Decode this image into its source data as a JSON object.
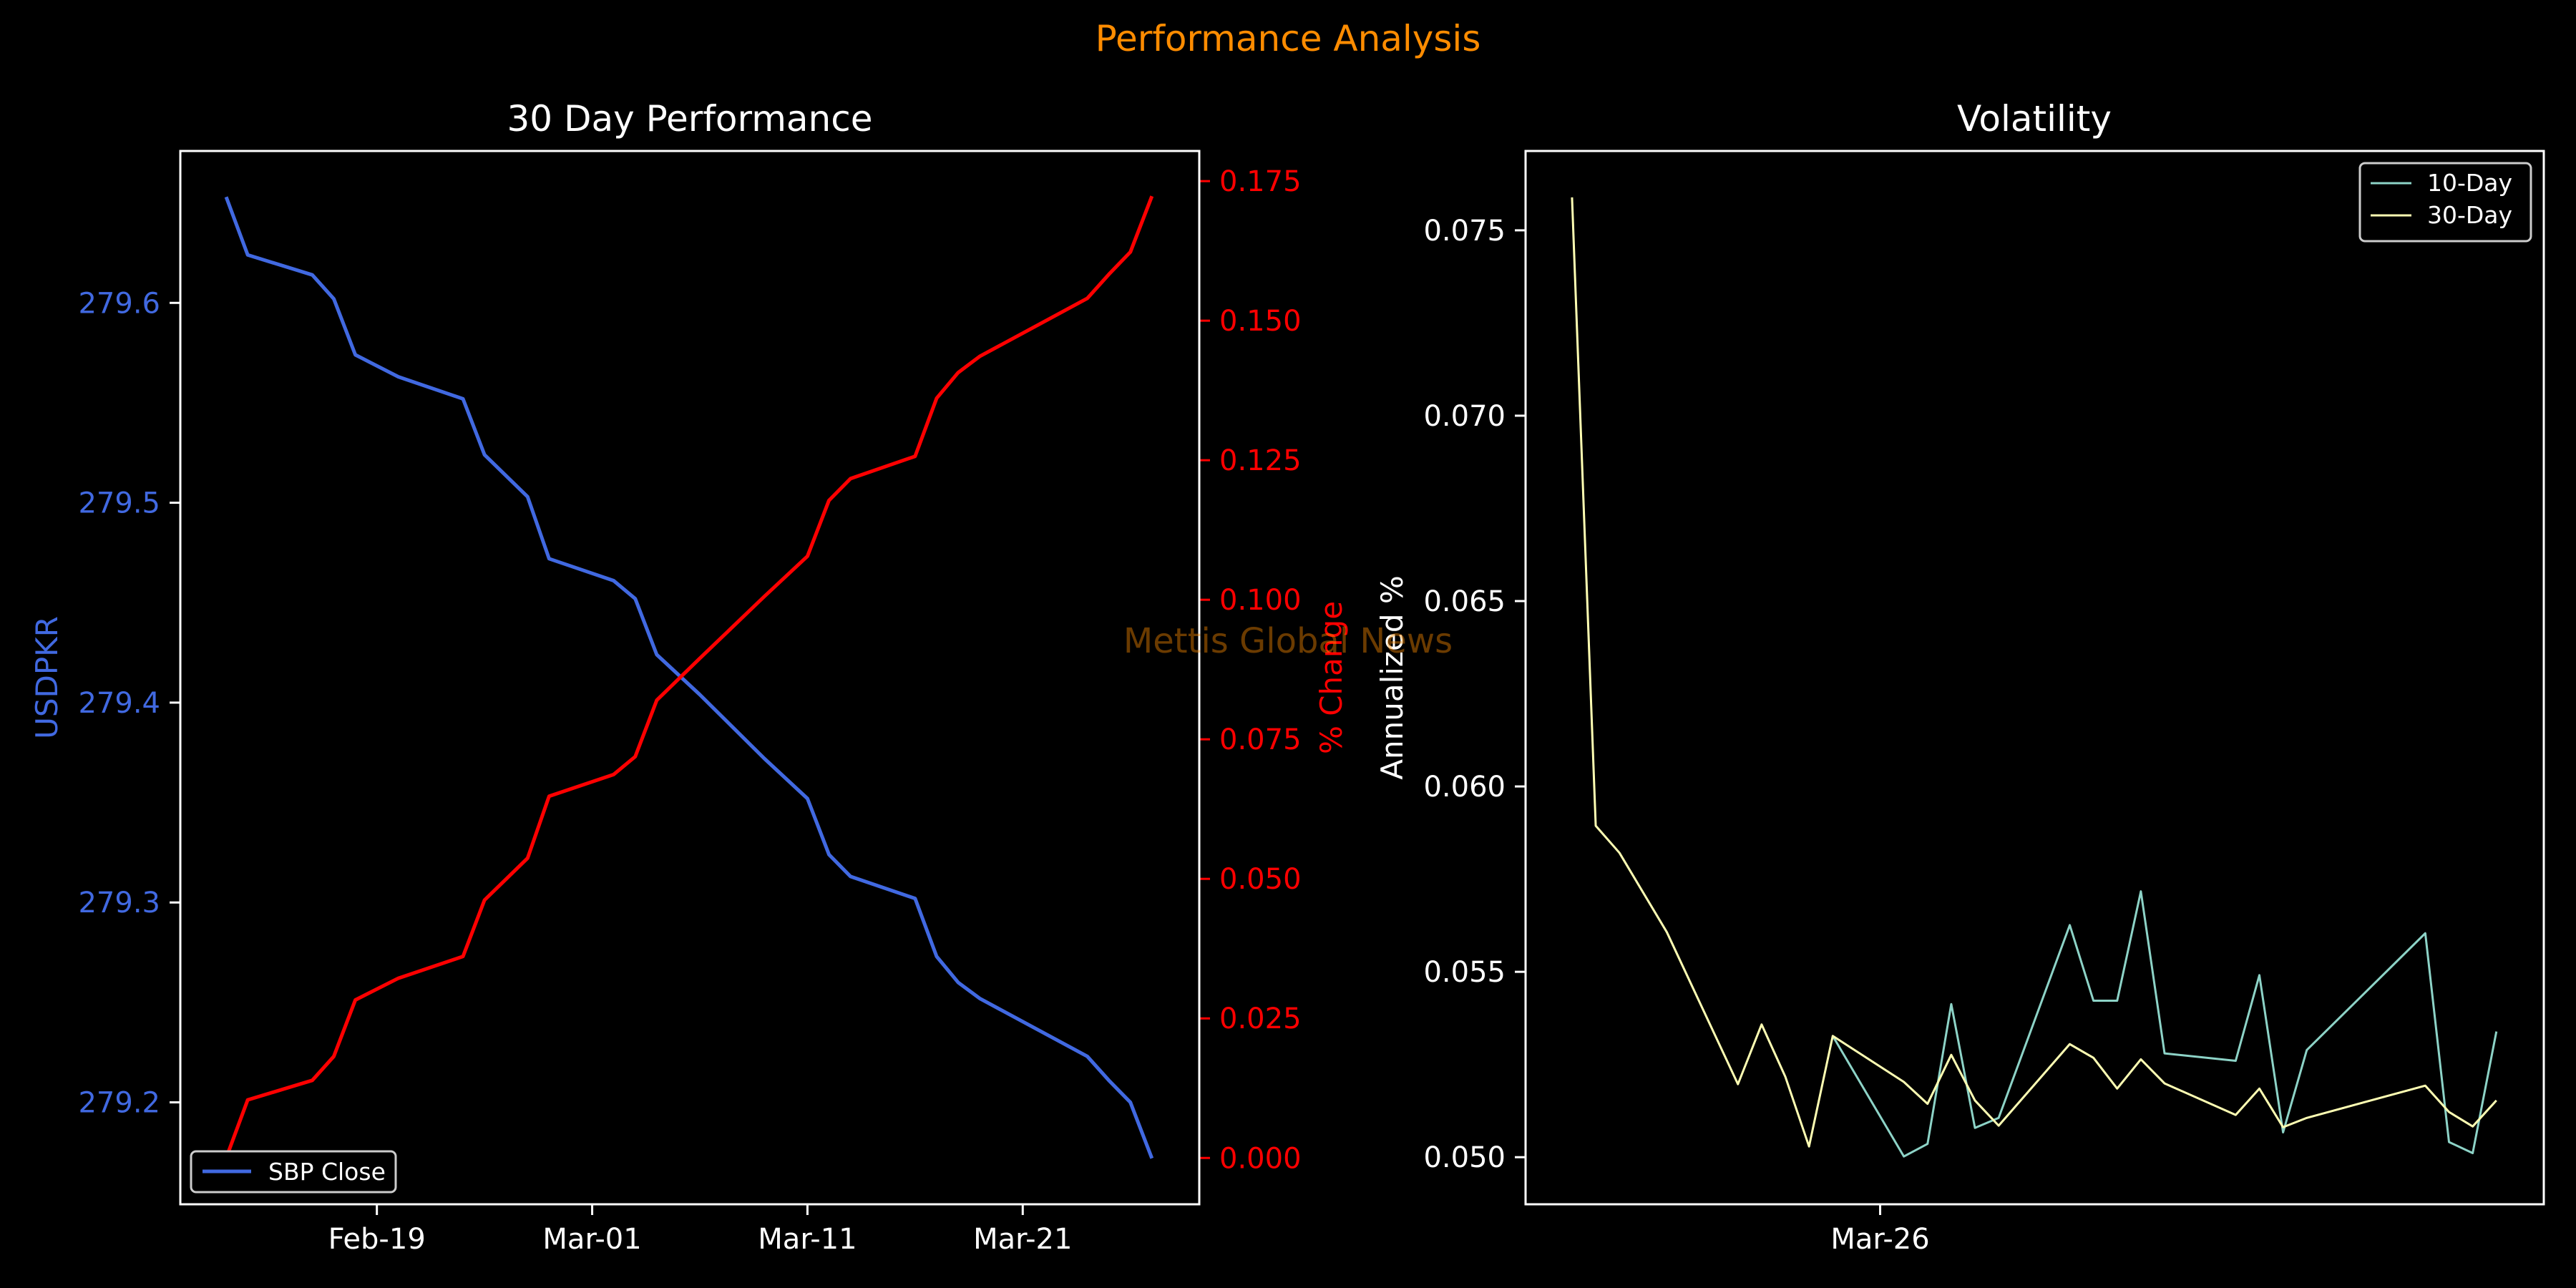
{
  "suptitle": "Performance Analysis",
  "watermark": "Mettis Global News",
  "colors": {
    "background": "#000000",
    "suptitle": "#ff8c00",
    "watermark": "#6b3f0a",
    "usdpkr": "#4169e1",
    "pct_change": "#ff0000",
    "vol10": "#8dd3c7",
    "vol30": "#ffffb3",
    "axes": "#ffffff"
  },
  "chart_data": [
    {
      "type": "line",
      "title": "30 Day Performance",
      "xlabel": "",
      "ylabel": "USDPKR",
      "ylabel_right": "% Change",
      "x_ticks": [
        "Feb-19",
        "Mar-01",
        "Mar-11",
        "Mar-21"
      ],
      "y_ticks": [
        "279.2",
        "279.3",
        "279.4",
        "279.5",
        "279.6"
      ],
      "y_ticks_right": [
        "0.000",
        "0.025",
        "0.050",
        "0.075",
        "0.100",
        "0.125",
        "0.150",
        "0.175"
      ],
      "ylim": [
        279.149,
        279.676
      ],
      "ylim_right": [
        -0.0083,
        0.1804
      ],
      "legend": {
        "entries": [
          "SBP Close"
        ],
        "placement": "lower-left"
      },
      "x": [
        "Feb-12",
        "Feb-13",
        "Feb-16",
        "Feb-17",
        "Feb-18",
        "Feb-20",
        "Feb-23",
        "Feb-24",
        "Feb-26",
        "Feb-27",
        "Mar-02",
        "Mar-03",
        "Mar-04",
        "Mar-06",
        "Mar-09",
        "Mar-11",
        "Mar-12",
        "Mar-13",
        "Mar-16",
        "Mar-17",
        "Mar-18",
        "Mar-19",
        "Mar-24",
        "Mar-25",
        "Mar-26",
        "Mar-27"
      ],
      "series": [
        {
          "name": "SBP Close",
          "axis": "left",
          "values": [
            279.653,
            279.624,
            279.614,
            279.602,
            279.574,
            279.563,
            279.552,
            279.524,
            279.503,
            279.472,
            279.461,
            279.452,
            279.424,
            279.404,
            279.372,
            279.352,
            279.324,
            279.313,
            279.302,
            279.273,
            279.26,
            279.252,
            279.223,
            279.211,
            279.2,
            279.172
          ]
        },
        {
          "name": "% Change",
          "axis": "right",
          "values": [
            0.0,
            0.0104,
            0.0139,
            0.0182,
            0.0283,
            0.0322,
            0.0361,
            0.0462,
            0.0537,
            0.0648,
            0.0687,
            0.0719,
            0.082,
            0.0895,
            0.1006,
            0.1078,
            0.1178,
            0.1217,
            0.1257,
            0.1361,
            0.1407,
            0.1436,
            0.154,
            0.1583,
            0.1623,
            0.1723
          ]
        }
      ]
    },
    {
      "type": "line",
      "title": "Volatility",
      "xlabel": "",
      "ylabel": "Annualized %",
      "x_ticks": [
        {
          "label": "Mar-26",
          "x": 13
        }
      ],
      "y_ticks": [
        "0.050",
        "0.055",
        "0.060",
        "0.065",
        "0.070",
        "0.075"
      ],
      "xlim": [
        -1.96,
        41
      ],
      "ylim": [
        0.04873,
        0.07714
      ],
      "legend": {
        "entries": [
          "10-Day",
          "30-Day"
        ],
        "placement": "upper-right"
      },
      "series": [
        {
          "name": "10-Day",
          "x": [
            11,
            14,
            15,
            16,
            17,
            18,
            21,
            22,
            23,
            24,
            25,
            28,
            29,
            30,
            31,
            36,
            37,
            38,
            39
          ],
          "values": [
            0.05327,
            0.05002,
            0.05036,
            0.05413,
            0.05079,
            0.05106,
            0.05626,
            0.05422,
            0.05422,
            0.05717,
            0.0528,
            0.0526,
            0.05491,
            0.05067,
            0.05289,
            0.05604,
            0.05041,
            0.05011,
            0.05339
          ]
        },
        {
          "name": "30-Day",
          "x": [
            0,
            1,
            2,
            4,
            7,
            8,
            9,
            10,
            11,
            14,
            15,
            16,
            17,
            18,
            21,
            22,
            23,
            24,
            25,
            28,
            29,
            30,
            31,
            36,
            37,
            38,
            39
          ],
          "values": [
            0.07589,
            0.05894,
            0.05821,
            0.05607,
            0.05197,
            0.05358,
            0.05217,
            0.05029,
            0.05327,
            0.05203,
            0.05144,
            0.05276,
            0.05153,
            0.05085,
            0.05305,
            0.05268,
            0.05185,
            0.05264,
            0.05199,
            0.05114,
            0.05185,
            0.05081,
            0.05106,
            0.05193,
            0.05122,
            0.05083,
            0.05153
          ]
        }
      ]
    }
  ]
}
